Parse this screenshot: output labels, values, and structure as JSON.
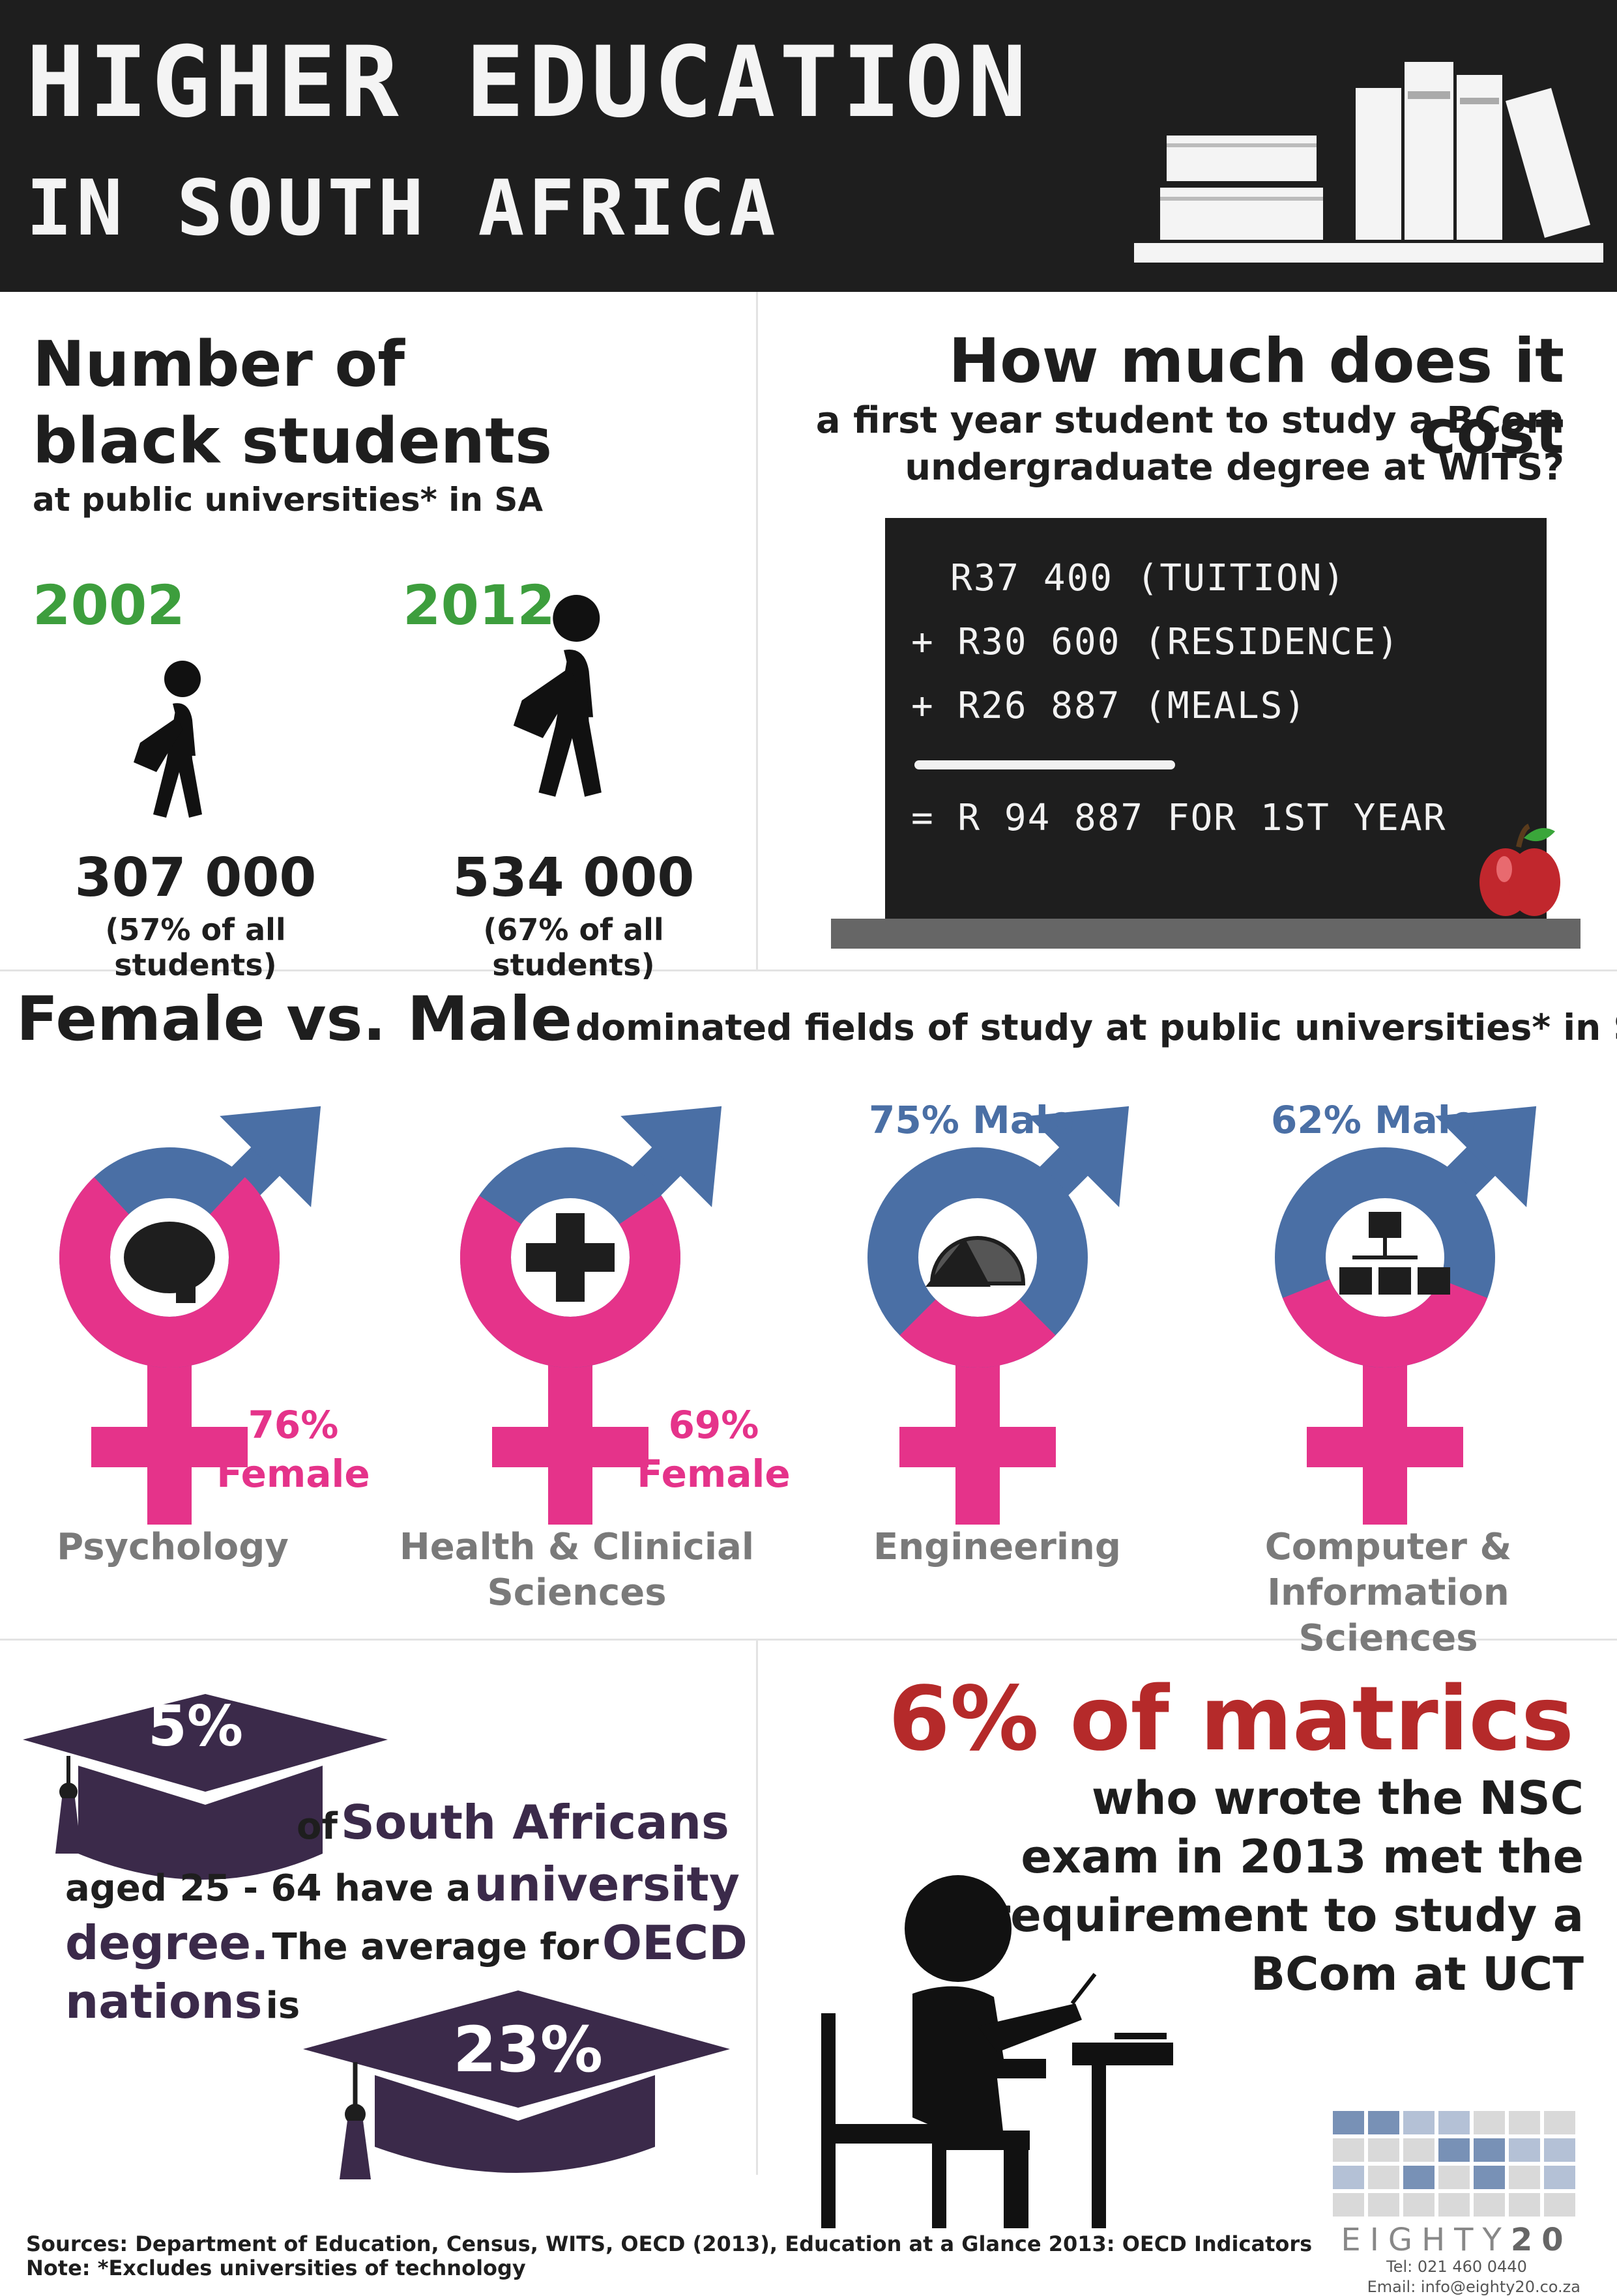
{
  "header": {
    "title_line1": "HIGHER EDUCATION",
    "title_line2": "IN SOUTH AFRICA",
    "bookshelf_icon": "bookshelf-icon"
  },
  "black_students": {
    "title_line1": "Number of",
    "title_line2": "black students",
    "subtitle": "at public universities* in SA",
    "years": [
      {
        "year": "2002",
        "count": "307 000",
        "share": "(57% of all students)"
      },
      {
        "year": "2012",
        "count": "534 000",
        "share": "(67% of all students)"
      }
    ],
    "icon": "walking-student-icon"
  },
  "cost": {
    "title": "How much does it cost",
    "subtitle_line1": "a first year student to study a BCom",
    "subtitle_line2": "undergraduate degree at WITS?",
    "lines": [
      "R37 400 (TUITION)",
      "+ R30 600 (RESIDENCE)",
      "+ R26 887 (MEALS)"
    ],
    "total": "= R 94 887 FOR 1ST YEAR",
    "icon": "apple-icon"
  },
  "gender": {
    "title_main": "Female vs. Male",
    "title_rest": "dominated fields of study at public universities* in SA",
    "colors": {
      "female": "#e5338a",
      "male": "#4a6fa5"
    },
    "fields": [
      {
        "name_line1": "Psychology",
        "name_line2": "",
        "label_line1": "76%",
        "label_line2": "Female",
        "dominant": "female",
        "female_share": 0.76,
        "icon": "brain-icon"
      },
      {
        "name_line1": "Health & Clinicial",
        "name_line2": "Sciences",
        "label_line1": "69%",
        "label_line2": "Female",
        "dominant": "female",
        "female_share": 0.69,
        "icon": "medical-cross-icon"
      },
      {
        "name_line1": "Engineering",
        "name_line2": "",
        "label_line1": "75% Male",
        "label_line2": "",
        "dominant": "male",
        "female_share": 0.25,
        "icon": "protractor-icon"
      },
      {
        "name_line1": "Computer &",
        "name_line2": "Information Sciences",
        "label_line1": "62% Male",
        "label_line2": "",
        "dominant": "male",
        "female_share": 0.38,
        "icon": "network-icon"
      }
    ]
  },
  "degree": {
    "sa_percent": "5%",
    "text_of": "of",
    "text_sa": "South Africans",
    "text_aged": "aged 25 - 64 have a",
    "text_university": "university",
    "text_degree": "degree.",
    "text_average": "The average for",
    "text_oecd": "OECD",
    "text_nations": "nations",
    "text_is": "is",
    "oecd_percent": "23%",
    "icon": "graduation-cap-icon"
  },
  "matrics": {
    "headline": "6% of matrics",
    "lines": [
      "who wrote the NSC",
      "exam in 2013 met the",
      "requirement to study a",
      "BCom at UCT"
    ],
    "icon": "student-at-desk-icon"
  },
  "footer": {
    "sources": "Sources: Department of Education, Census, WITS, OECD (2013), Education at a Glance 2013: OECD Indicators",
    "note": "Note: *Excludes universities of technology",
    "brand_a": "EIGHTY",
    "brand_b": "20",
    "tel": "Tel: 021 460 0440",
    "email": "Email: info@eighty20.co.za"
  }
}
